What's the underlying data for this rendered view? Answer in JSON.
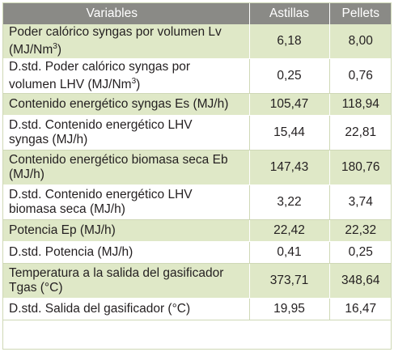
{
  "table": {
    "headers": [
      "Variables",
      "Astillas",
      "Pellets"
    ],
    "rows": [
      {
        "label": "Poder calórico syngas por volumen Lv",
        "label2": "(MJ/Nm",
        "sup": "3",
        "label2b": ")",
        "astillas": "6,18",
        "pellets": "8,00"
      },
      {
        "label": "D.std. Poder calórico syngas por",
        "label2": "volumen LHV (MJ/Nm",
        "sup": "3",
        "label2b": ")",
        "astillas": "0,25",
        "pellets": "0,76"
      },
      {
        "label": "Contenido energético syngas Es (MJ/h)",
        "astillas": "105,47",
        "pellets": "118,94"
      },
      {
        "label": "D.std. Contenido energético LHV",
        "label2": "syngas (MJ/h)",
        "astillas": "15,44",
        "pellets": "22,81"
      },
      {
        "label": "Contenido energético biomasa seca Eb",
        "label2": "(MJ/h)",
        "astillas": "147,43",
        "pellets": "180,76"
      },
      {
        "label": "D.std. Contenido energético LHV",
        "label2": "biomasa seca (MJ/h)",
        "astillas": "3,22",
        "pellets": "3,74"
      },
      {
        "label": "Potencia Ep (MJ/h)",
        "astillas": "22,42",
        "pellets": "22,32"
      },
      {
        "label": "D.std. Potencia (MJ/h)",
        "astillas": "0,41",
        "pellets": "0,25"
      },
      {
        "label": "Temperatura a la salida del gasificador",
        "label2": "Tgas (°C)",
        "astillas": "373,71",
        "pellets": "348,64"
      },
      {
        "label": "D.std. Salida del gasificador (°C)",
        "astillas": "19,95",
        "pellets": "16,47"
      }
    ]
  }
}
